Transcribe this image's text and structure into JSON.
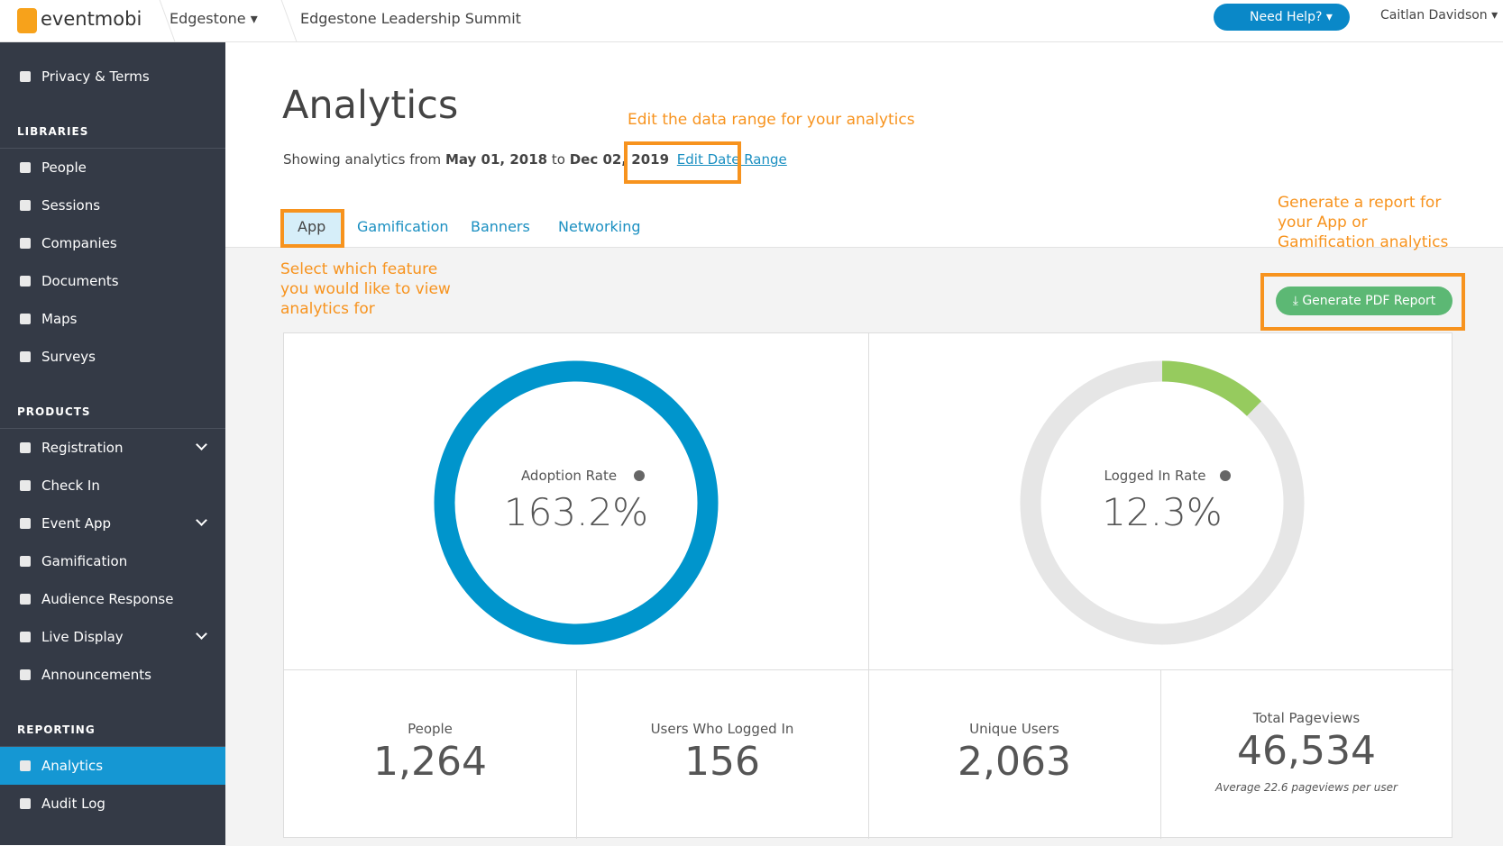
{
  "header": {
    "logo": "eventmobi",
    "organization": "Edgestone",
    "event": "Edgestone Leadership Summit",
    "help": "Need Help?",
    "user": "Caitlan Davidson"
  },
  "sidebar": {
    "items": [
      {
        "label": "Privacy & Terms"
      }
    ],
    "sections": [
      {
        "title": "LIBRARIES",
        "items": [
          {
            "label": "People"
          },
          {
            "label": "Sessions"
          },
          {
            "label": "Companies"
          },
          {
            "label": "Documents"
          },
          {
            "label": "Maps"
          },
          {
            "label": "Surveys"
          }
        ]
      },
      {
        "title": "PRODUCTS",
        "items": [
          {
            "label": "Registration",
            "has_submenu": true
          },
          {
            "label": "Check In"
          },
          {
            "label": "Event App",
            "has_submenu": true
          },
          {
            "label": "Gamification"
          },
          {
            "label": "Audience Response"
          },
          {
            "label": "Live Display",
            "has_submenu": true
          },
          {
            "label": "Announcements"
          }
        ]
      },
      {
        "title": "REPORTING",
        "items": [
          {
            "label": "Analytics",
            "active": true
          },
          {
            "label": "Audit Log"
          }
        ]
      }
    ]
  },
  "page": {
    "title": "Analytics",
    "range": {
      "prefix": "Showing analytics from",
      "start": "May 01, 2018",
      "joiner": "to",
      "end": "Dec 02, 2019",
      "link": "Edit Date Range"
    },
    "tabs": [
      "App",
      "Gamification",
      "Banners",
      "Networking"
    ],
    "active_tab": 0,
    "button": "Generate PDF Report",
    "rates": [
      {
        "label": "Adoption Rate",
        "value": 163.2,
        "value_label": "163.2%",
        "color": "#0095cc"
      },
      {
        "label": "Logged In Rate",
        "value": 12.3,
        "value_label": "12.3%",
        "color": "#96cb5e"
      }
    ],
    "stats": [
      {
        "label": "People",
        "value": "1,264"
      },
      {
        "label": "Users Who Logged In",
        "value": "156"
      },
      {
        "label": "Unique Users",
        "value": "2,063"
      },
      {
        "label": "Total Pageviews",
        "value": "46,534",
        "note": "Average 22.6 pageviews per user"
      }
    ]
  },
  "annotations": {
    "date_range": "Edit the data range for your analytics",
    "tabs": [
      "Select which feature",
      "you would like to view",
      "analytics for"
    ],
    "report": [
      "Generate a report for",
      "your App or",
      "Gamification analytics"
    ]
  }
}
